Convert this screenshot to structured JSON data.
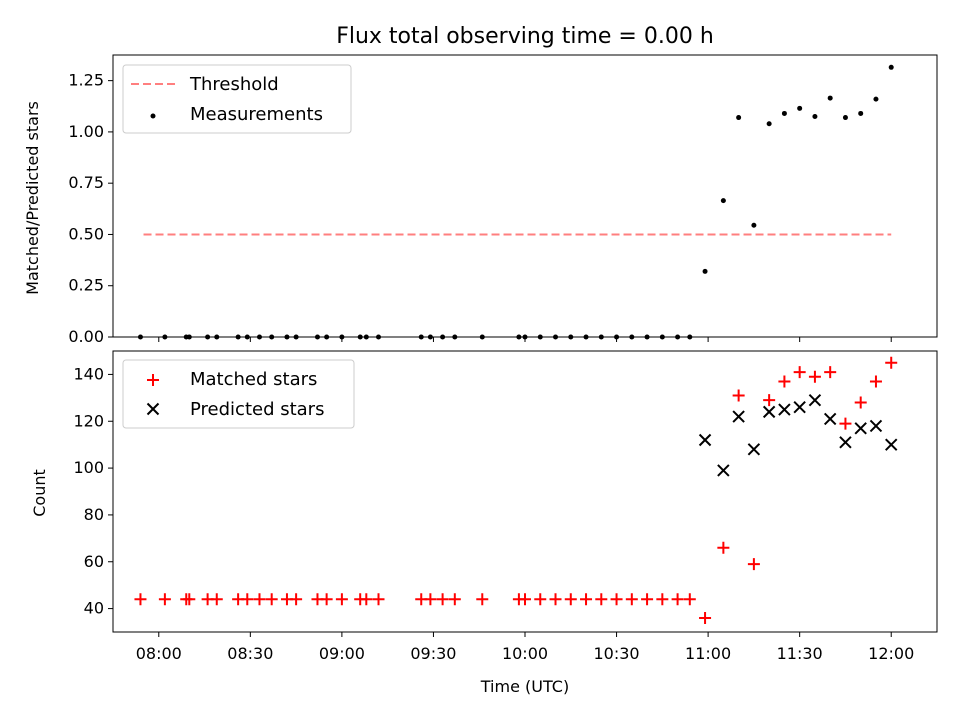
{
  "chart_data": [
    {
      "type": "scatter",
      "title": "Flux total observing time = 0.00 h",
      "xlabel": "",
      "ylabel": "Matched/Predicted stars",
      "ylim": [
        0,
        1.375
      ],
      "yticks": [
        "0.00",
        "0.25",
        "0.50",
        "0.75",
        "1.00",
        "1.25"
      ],
      "legend": {
        "position": "top-left",
        "entries": [
          "Threshold",
          "Measurements"
        ]
      },
      "threshold": {
        "name": "Threshold",
        "y": 0.5,
        "x_start": "07:55",
        "x_end": "12:00",
        "color": "#ff7f7f"
      },
      "series": [
        {
          "name": "Measurements",
          "color": "#000000",
          "x": [
            "07:54",
            "08:02",
            "08:09",
            "08:10",
            "08:16",
            "08:19",
            "08:26",
            "08:29",
            "08:33",
            "08:37",
            "08:42",
            "08:45",
            "08:52",
            "08:55",
            "09:00",
            "09:06",
            "09:08",
            "09:12",
            "09:26",
            "09:29",
            "09:33",
            "09:37",
            "09:46",
            "09:58",
            "10:00",
            "10:05",
            "10:10",
            "10:15",
            "10:20",
            "10:25",
            "10:30",
            "10:35",
            "10:40",
            "10:45",
            "10:50",
            "10:54",
            "10:59",
            "11:05",
            "11:10",
            "11:15",
            "11:20",
            "11:25",
            "11:30",
            "11:35",
            "11:40",
            "11:45",
            "11:50",
            "11:55",
            "12:00"
          ],
          "y": [
            0,
            0,
            0,
            0,
            0,
            0,
            0,
            0,
            0,
            0,
            0,
            0,
            0,
            0,
            0,
            0,
            0,
            0,
            0,
            0,
            0,
            0,
            0,
            0,
            0,
            0,
            0,
            0,
            0,
            0,
            0,
            0,
            0,
            0,
            0,
            0,
            0.32,
            0.665,
            1.07,
            0.545,
            1.04,
            1.09,
            1.115,
            1.075,
            1.165,
            1.07,
            1.09,
            1.16,
            1.315
          ]
        }
      ]
    },
    {
      "type": "scatter",
      "title": "",
      "xlabel": "Time (UTC)",
      "ylabel": "Count",
      "ylim": [
        30,
        150
      ],
      "yticks": [
        "40",
        "60",
        "80",
        "100",
        "120",
        "140"
      ],
      "xticks": [
        "08:00",
        "08:30",
        "09:00",
        "09:30",
        "10:00",
        "10:30",
        "11:00",
        "11:30",
        "12:00"
      ],
      "legend": {
        "position": "top-left",
        "entries": [
          "Matched stars",
          "Predicted stars"
        ]
      },
      "series": [
        {
          "name": "Matched stars",
          "color": "#ff0000",
          "marker": "plus",
          "x": [
            "07:54",
            "08:02",
            "08:09",
            "08:10",
            "08:16",
            "08:19",
            "08:26",
            "08:29",
            "08:33",
            "08:37",
            "08:42",
            "08:45",
            "08:52",
            "08:55",
            "09:00",
            "09:06",
            "09:08",
            "09:12",
            "09:26",
            "09:29",
            "09:33",
            "09:37",
            "09:46",
            "09:58",
            "10:00",
            "10:05",
            "10:10",
            "10:15",
            "10:20",
            "10:25",
            "10:30",
            "10:35",
            "10:40",
            "10:45",
            "10:50",
            "10:54",
            "10:59",
            "11:05",
            "11:10",
            "11:15",
            "11:20",
            "11:25",
            "11:30",
            "11:35",
            "11:40",
            "11:45",
            "11:50",
            "11:55",
            "12:00"
          ],
          "y": [
            44,
            44,
            44,
            44,
            44,
            44,
            44,
            44,
            44,
            44,
            44,
            44,
            44,
            44,
            44,
            44,
            44,
            44,
            44,
            44,
            44,
            44,
            44,
            44,
            44,
            44,
            44,
            44,
            44,
            44,
            44,
            44,
            44,
            44,
            44,
            44,
            36,
            66,
            131,
            59,
            129,
            137,
            141,
            139,
            141,
            119,
            128,
            137,
            145
          ]
        },
        {
          "name": "Predicted stars",
          "color": "#000000",
          "marker": "x",
          "x": [
            "10:59",
            "11:05",
            "11:10",
            "11:15",
            "11:20",
            "11:25",
            "11:30",
            "11:35",
            "11:40",
            "11:45",
            "11:50",
            "11:55",
            "12:00"
          ],
          "y": [
            112,
            99,
            122,
            108,
            124,
            125,
            126,
            129,
            121,
            111,
            117,
            118,
            110
          ]
        }
      ]
    }
  ]
}
